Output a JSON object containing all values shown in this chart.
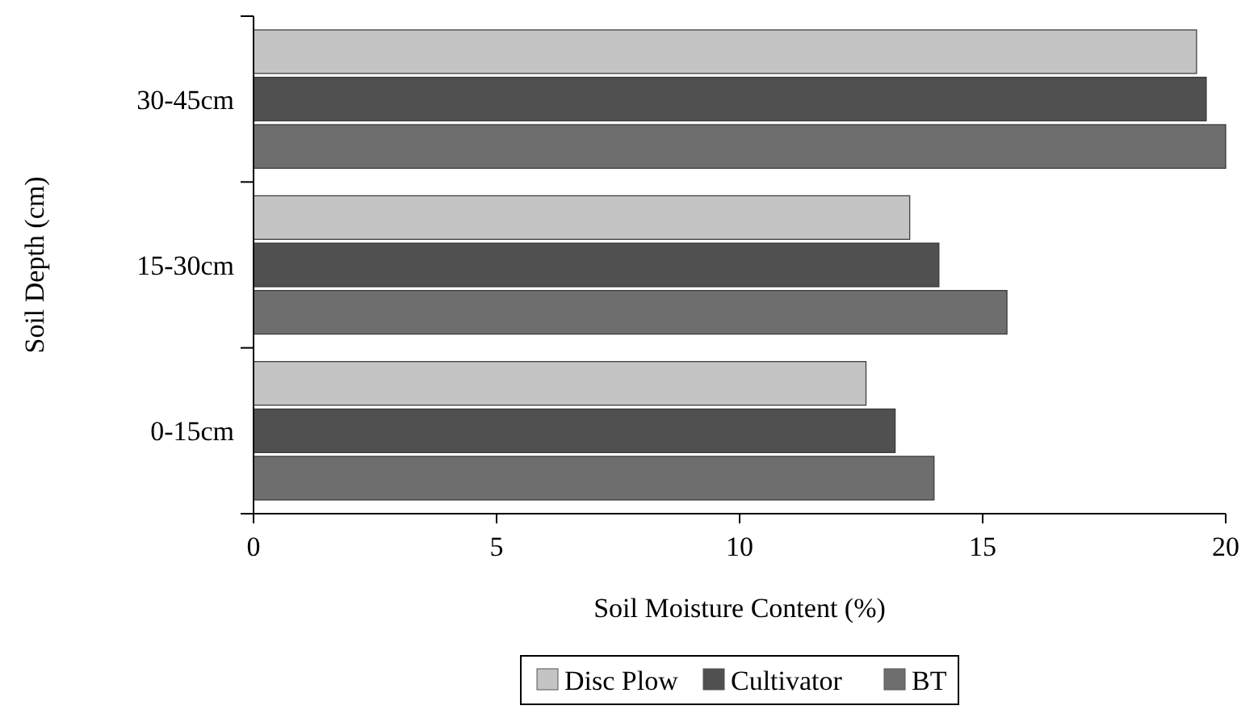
{
  "chart_data": {
    "type": "bar",
    "orientation": "horizontal",
    "xlabel": "Soil Moisture Content (%)",
    "ylabel": "Soil Depth (cm)",
    "categories": [
      "30-45cm",
      "15-30cm",
      "0-15cm"
    ],
    "series": [
      {
        "name": "Disc Plow",
        "color": "#c4c4c4",
        "values": [
          19.4,
          13.5,
          12.6
        ]
      },
      {
        "name": "Cultivator",
        "color": "#505050",
        "values": [
          19.6,
          14.1,
          13.2
        ]
      },
      {
        "name": "BT",
        "color": "#6e6e6e",
        "values": [
          20,
          15.5,
          14
        ]
      }
    ],
    "xlim": [
      0,
      20
    ],
    "xticks": [
      0,
      5,
      10,
      15,
      20
    ],
    "grid": false,
    "legend": "bottom"
  }
}
